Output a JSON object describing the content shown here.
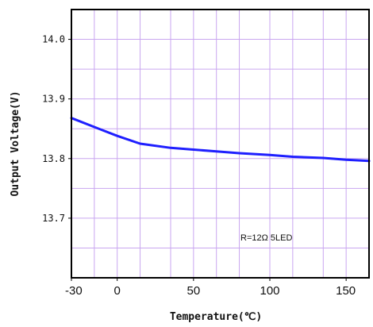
{
  "chart_data": {
    "type": "line",
    "title": "",
    "xlabel": "Temperature(℃)",
    "ylabel": "Output Voltage(V)",
    "xlim": [
      -30,
      165
    ],
    "ylim": [
      13.6,
      14.05
    ],
    "x_ticks": [
      -30,
      0,
      50,
      100,
      150
    ],
    "x_tick_labels": [
      "-30",
      "0",
      "50",
      "100",
      "150"
    ],
    "x_minor_grid": [
      -30,
      -15,
      0,
      15,
      35,
      50,
      65,
      80,
      100,
      115,
      135,
      150,
      165
    ],
    "y_ticks": [
      13.7,
      13.8,
      13.9,
      14.0
    ],
    "y_tick_labels": [
      "13.7",
      "13.8",
      "13.9",
      "14.0"
    ],
    "y_minor_grid": [
      13.65,
      13.7,
      13.75,
      13.8,
      13.85,
      13.9,
      13.95,
      14.0
    ],
    "grid": true,
    "annotation": "R=12Ω  5LED",
    "series": [
      {
        "name": "",
        "x": [
          -30,
          -15,
          0,
          15,
          35,
          50,
          65,
          80,
          100,
          115,
          135,
          150,
          165
        ],
        "y": [
          13.868,
          13.853,
          13.838,
          13.825,
          13.818,
          13.815,
          13.812,
          13.809,
          13.806,
          13.803,
          13.801,
          13.798,
          13.796
        ],
        "color": "#1f1fff"
      }
    ],
    "colors": {
      "grid": "#c9a6f0",
      "frame": "#000000",
      "line": "#1f1fff"
    }
  }
}
